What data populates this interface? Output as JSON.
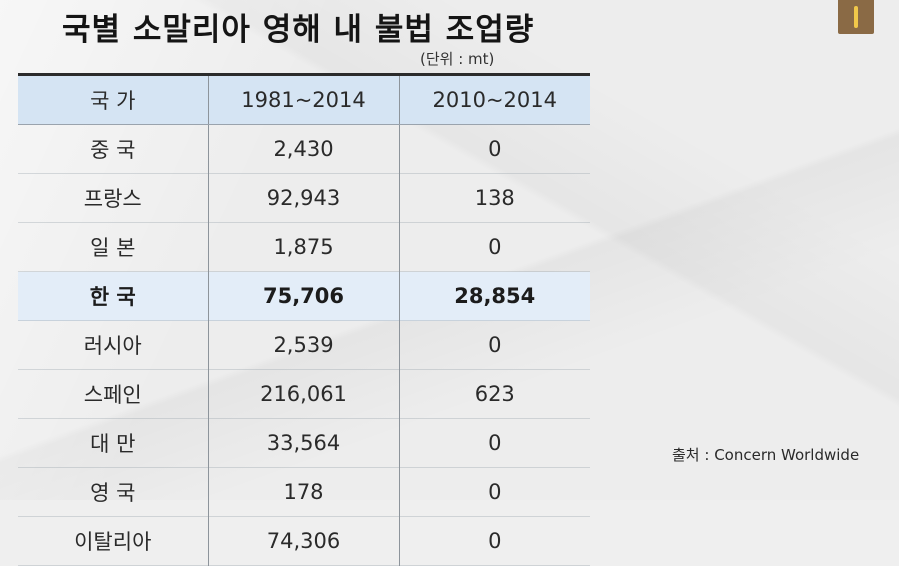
{
  "title": "국별 소말리아 영해 내 불법 조업량",
  "unit": "(단위 : mt)",
  "table": {
    "headers": [
      "국 가",
      "1981~2014",
      "2010~2014"
    ],
    "rows": [
      {
        "country": "중 국",
        "a": "2,430",
        "b": "0",
        "highlight": false
      },
      {
        "country": "프랑스",
        "a": "92,943",
        "b": "138",
        "highlight": false
      },
      {
        "country": "일 본",
        "a": "1,875",
        "b": "0",
        "highlight": false
      },
      {
        "country": "한 국",
        "a": "75,706",
        "b": "28,854",
        "highlight": true
      },
      {
        "country": "러시아",
        "a": "2,539",
        "b": "0",
        "highlight": false
      },
      {
        "country": "스페인",
        "a": "216,061",
        "b": "623",
        "highlight": false
      },
      {
        "country": "대 만",
        "a": "33,564",
        "b": "0",
        "highlight": false
      },
      {
        "country": "영 국",
        "a": "178",
        "b": "0",
        "highlight": false
      },
      {
        "country": "이탈리아",
        "a": "74,306",
        "b": "0",
        "highlight": false
      }
    ]
  },
  "source": "출처 : Concern Worldwide",
  "colors": {
    "header_bg": "#d5e4f3",
    "highlight_bg": "#e3edf8",
    "corner_icon": "#8a6a45"
  },
  "icons": {
    "corner": "bookmark-icon"
  }
}
